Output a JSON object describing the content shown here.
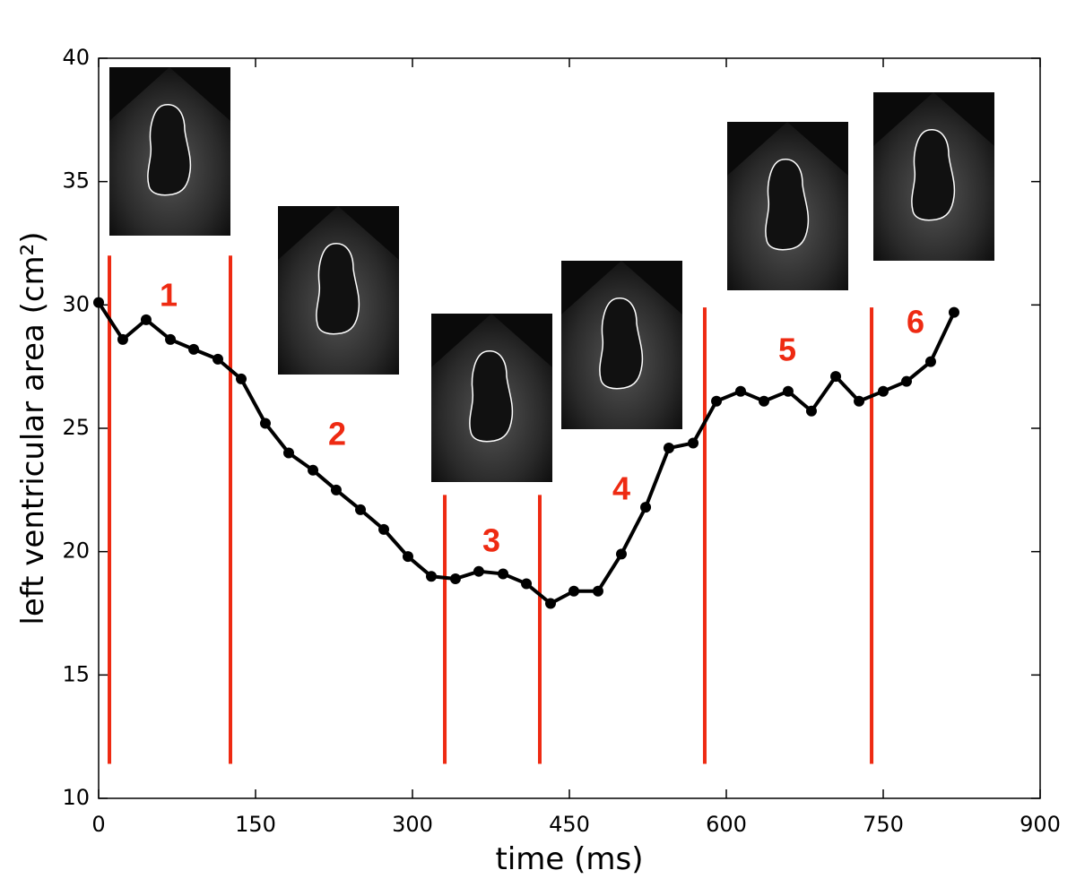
{
  "chart_data": {
    "type": "line",
    "x_label": "time (ms)",
    "y_label": "left ventricular area (cm²)",
    "xlim": [
      0,
      900
    ],
    "xticks": [
      0,
      150,
      300,
      450,
      600,
      750,
      900
    ],
    "ylim": [
      10,
      40
    ],
    "yticks": [
      10,
      15,
      20,
      25,
      30,
      35,
      40
    ],
    "grid": false,
    "series": [
      {
        "color": "#000000",
        "x": [
          0,
          23.1,
          45.4,
          68.6,
          90.9,
          114,
          136.3,
          159.4,
          181.7,
          204.9,
          227.1,
          250.3,
          272.6,
          295.7,
          318,
          341.1,
          363.4,
          386.6,
          408.9,
          432,
          454.3,
          477.4,
          499.7,
          522.9,
          545.1,
          568.3,
          590.6,
          613.7,
          636,
          659.1,
          681.4,
          704.6,
          726.9,
          750,
          772.3,
          795.4,
          817.7
        ],
        "values": [
          30.1,
          28.6,
          29.4,
          28.6,
          28.2,
          27.8,
          27,
          25.2,
          24,
          23.3,
          22.5,
          21.7,
          20.9,
          19.8,
          19,
          18.9,
          19.2,
          19.1,
          18.7,
          17.9,
          18.4,
          18.4,
          19.9,
          21.8,
          24.2,
          24.4,
          26.1,
          26.5,
          26.1,
          26.5,
          25.7,
          27.1,
          26.1,
          26.5,
          26.9,
          27.7,
          29.7
        ]
      }
    ],
    "phase_color": "#ee2a12",
    "phase_boundaries": [
      {
        "x": 10.3,
        "y": [
          11.4,
          32
        ]
      },
      {
        "x": 126,
        "y": [
          11.4,
          32
        ]
      },
      {
        "x": 330.9,
        "y": [
          11.4,
          22.3
        ]
      },
      {
        "x": 421.7,
        "y": [
          11.4,
          22.3
        ]
      },
      {
        "x": 579.4,
        "y": [
          11.4,
          29.9
        ]
      },
      {
        "x": 738.9,
        "y": [
          11.4,
          29.9
        ]
      }
    ],
    "phase_labels": [
      "1",
      "2",
      "3",
      "4",
      "5",
      "6"
    ]
  }
}
